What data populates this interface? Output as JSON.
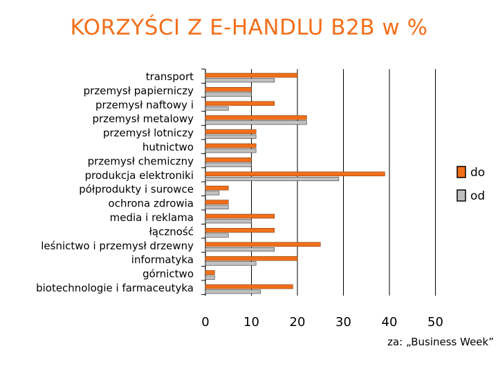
{
  "title": "KORZYŚCI Z E-HANDLU B2B w %",
  "source": "za: „Business Week”",
  "colors": {
    "do": "#f26f1a",
    "od": "#c0c0c0",
    "title": "#f26f1a"
  },
  "chart_data": {
    "type": "bar",
    "orientation": "horizontal",
    "categories": [
      "transport",
      "przemysł papierniczy",
      "przemysł naftowy i",
      "przemysł metalowy",
      "przemysł lotniczy",
      "hutnictwo",
      "przemysł chemiczny",
      "produkcja elektroniki",
      "półprodukty i surowce",
      "ochrona zdrowia",
      "media i reklama",
      "łączność",
      "leśnictwo i przemysł drzewny",
      "informatyka",
      "górnictwo",
      "biotechnologie i farmaceutyka"
    ],
    "series": [
      {
        "name": "do",
        "values": [
          20,
          10,
          15,
          22,
          11,
          11,
          10,
          39,
          5,
          5,
          15,
          15,
          25,
          20,
          2,
          19
        ]
      },
      {
        "name": "od",
        "values": [
          15,
          10,
          5,
          22,
          11,
          11,
          10,
          29,
          3,
          5,
          10,
          5,
          15,
          11,
          2,
          12
        ]
      }
    ],
    "xticks": [
      0,
      10,
      20,
      30,
      40,
      50
    ],
    "xlim": [
      0,
      50
    ],
    "grid": "vertical",
    "legend": "right"
  }
}
